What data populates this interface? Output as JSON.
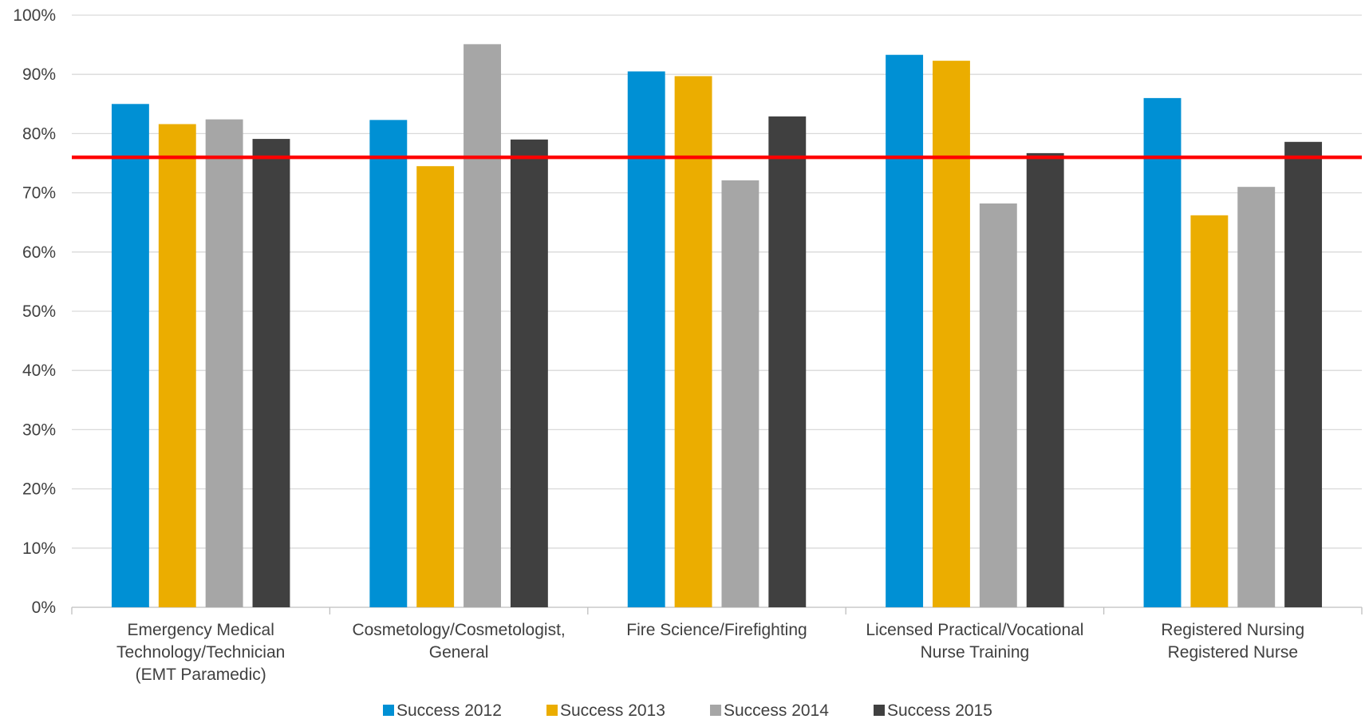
{
  "chart_data": {
    "type": "bar",
    "categories": [
      [
        "Emergency Medical",
        "Technology/Technician",
        "(EMT Paramedic)"
      ],
      [
        "Cosmetology/Cosmetologist,",
        "General"
      ],
      [
        "Fire Science/Firefighting"
      ],
      [
        "Licensed Practical/Vocational",
        "Nurse Training"
      ],
      [
        "Registered Nursing",
        "Registered Nurse"
      ]
    ],
    "series": [
      {
        "name": "Success 2012",
        "color": "#0090D4",
        "values": [
          85,
          82.3,
          90.5,
          93.3,
          86
        ]
      },
      {
        "name": "Success 2013",
        "color": "#EBAD00",
        "values": [
          81.6,
          74.5,
          89.7,
          92.3,
          66.2
        ]
      },
      {
        "name": "Success 2014",
        "color": "#A6A6A6",
        "values": [
          82.4,
          95.1,
          72.1,
          68.2,
          71
        ]
      },
      {
        "name": "Success 2015",
        "color": "#404040",
        "values": [
          79.1,
          79,
          82.9,
          76.7,
          78.6
        ]
      }
    ],
    "reference_line": {
      "value": 76,
      "color": "#FF0000"
    },
    "ylim": [
      0,
      100
    ],
    "yticks": [
      "0%",
      "10%",
      "20%",
      "30%",
      "40%",
      "50%",
      "60%",
      "70%",
      "80%",
      "90%",
      "100%"
    ],
    "grid": true,
    "legend": "bottom",
    "title": "",
    "xlabel": "",
    "ylabel": ""
  }
}
